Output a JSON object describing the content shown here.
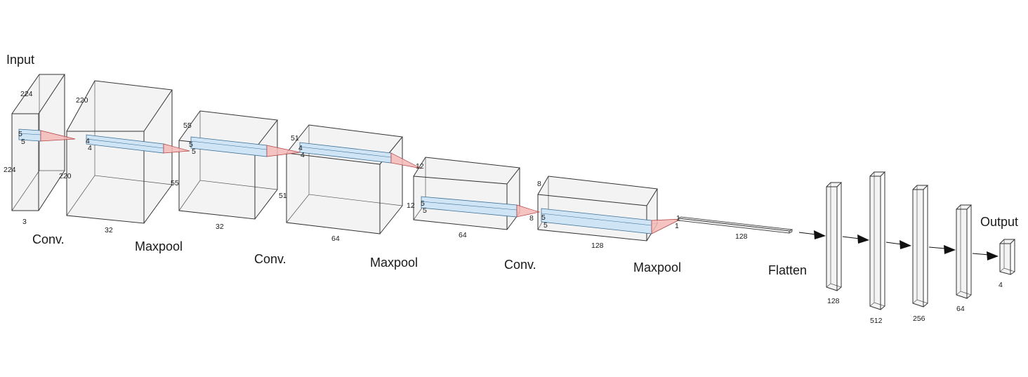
{
  "captions": {
    "input": "Input",
    "conv1": "Conv.",
    "maxpool1": "Maxpool",
    "conv2": "Conv.",
    "maxpool2": "Maxpool",
    "conv3": "Conv.",
    "maxpool3": "Maxpool",
    "flatten": "Flatten",
    "output": "Output"
  },
  "blocks": {
    "input": {
      "width": "224",
      "height": "224",
      "depth": "3"
    },
    "conv1": {
      "width": "220",
      "height": "220",
      "depth": "32"
    },
    "pool1": {
      "width": "55",
      "height": "55",
      "depth": "32"
    },
    "conv2": {
      "width": "51",
      "height": "51",
      "depth": "64"
    },
    "pool2": {
      "width": "12",
      "height": "12",
      "depth": "64"
    },
    "conv3": {
      "width": "8",
      "height": "8",
      "depth": "128"
    },
    "pool3": {
      "width": "1",
      "height": "1",
      "depth": "128"
    }
  },
  "kernels": {
    "k1": {
      "a": "5",
      "b": "5"
    },
    "k2": {
      "a": "4",
      "b": "4"
    },
    "k3": {
      "a": "5",
      "b": "5"
    },
    "k4": {
      "a": "4",
      "b": "4"
    },
    "k5": {
      "a": "5",
      "b": "5"
    },
    "k6": {
      "a": "5",
      "b": "5"
    }
  },
  "dense": {
    "flatten": "128",
    "fc1": "128",
    "fc2": "512",
    "fc3": "256",
    "fc4": "64",
    "out": "4"
  }
}
